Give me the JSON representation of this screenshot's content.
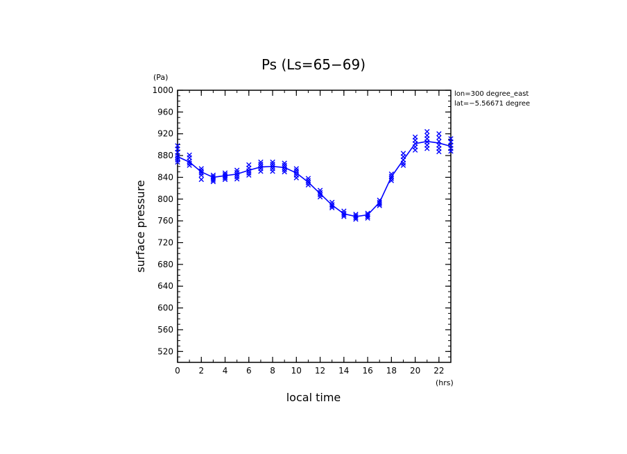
{
  "chart_data": {
    "type": "scatter",
    "title": "Ps (Ls=65−69)",
    "xlabel": "local time",
    "ylabel": "surface pressure",
    "x_unit": "(hrs)",
    "y_unit": "(Pa)",
    "xlim": [
      0,
      23
    ],
    "ylim": [
      500,
      1000
    ],
    "x_ticks": [
      0,
      2,
      4,
      6,
      8,
      10,
      12,
      14,
      16,
      18,
      20,
      22
    ],
    "y_ticks": [
      520,
      560,
      600,
      640,
      680,
      720,
      760,
      800,
      840,
      880,
      920,
      960,
      1000
    ],
    "annotations": [
      "lon=300 degree_east",
      "lat=−5.56671 degree"
    ],
    "grid": false,
    "color": "#0000ff",
    "mean_line": {
      "x": [
        0,
        1,
        2,
        3,
        4,
        5,
        6,
        7,
        8,
        9,
        10,
        11,
        12,
        13,
        14,
        15,
        16,
        17,
        18,
        19,
        20,
        21,
        22,
        23
      ],
      "y": [
        878,
        868,
        850,
        840,
        843,
        846,
        853,
        859,
        860,
        858,
        848,
        831,
        810,
        789,
        773,
        768,
        771,
        794,
        841,
        872,
        902,
        906,
        903,
        897
      ]
    },
    "points": [
      {
        "x": 0,
        "y": [
          898,
          892,
          886,
          880,
          876,
          872,
          868
        ]
      },
      {
        "x": 1,
        "y": [
          881,
          876,
          870,
          866,
          862
        ]
      },
      {
        "x": 2,
        "y": [
          856,
          852,
          848,
          844,
          836
        ]
      },
      {
        "x": 3,
        "y": [
          844,
          841,
          838,
          835,
          832
        ]
      },
      {
        "x": 4,
        "y": [
          848,
          845,
          842,
          839,
          836
        ]
      },
      {
        "x": 5,
        "y": [
          853,
          849,
          845,
          841,
          837
        ]
      },
      {
        "x": 6,
        "y": [
          863,
          857,
          852,
          848,
          844
        ]
      },
      {
        "x": 7,
        "y": [
          868,
          864,
          860,
          856,
          851
        ]
      },
      {
        "x": 8,
        "y": [
          868,
          864,
          860,
          856,
          851
        ]
      },
      {
        "x": 9,
        "y": [
          866,
          862,
          858,
          854,
          850
        ]
      },
      {
        "x": 10,
        "y": [
          856,
          852,
          848,
          844,
          839
        ]
      },
      {
        "x": 11,
        "y": [
          838,
          834,
          830,
          826
        ]
      },
      {
        "x": 12,
        "y": [
          816,
          812,
          808,
          804
        ]
      },
      {
        "x": 13,
        "y": [
          794,
          790,
          787,
          784
        ]
      },
      {
        "x": 14,
        "y": [
          778,
          774,
          771,
          768
        ]
      },
      {
        "x": 15,
        "y": [
          772,
          769,
          766,
          763
        ]
      },
      {
        "x": 16,
        "y": [
          774,
          771,
          768,
          765
        ]
      },
      {
        "x": 17,
        "y": [
          798,
          794,
          791,
          788
        ]
      },
      {
        "x": 18,
        "y": [
          846,
          842,
          838,
          834
        ]
      },
      {
        "x": 19,
        "y": [
          884,
          878,
          872,
          866,
          862
        ]
      },
      {
        "x": 20,
        "y": [
          914,
          908,
          902,
          896,
          890
        ]
      },
      {
        "x": 21,
        "y": [
          924,
          917,
          911,
          905,
          899,
          893
        ]
      },
      {
        "x": 22,
        "y": [
          920,
          913,
          906,
          899,
          893,
          887
        ]
      },
      {
        "x": 23,
        "y": [
          911,
          905,
          899,
          893,
          888
        ]
      }
    ]
  }
}
